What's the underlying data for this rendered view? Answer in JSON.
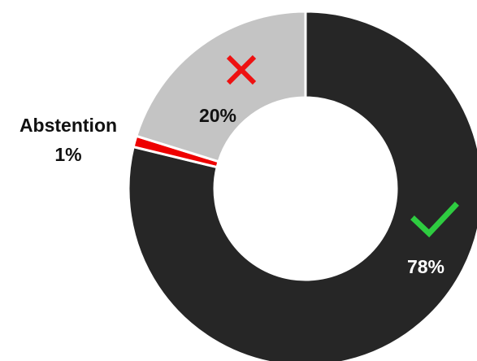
{
  "chart_data": {
    "type": "pie",
    "donut": true,
    "slices": [
      {
        "key": "yes",
        "value": 78,
        "label": "78%",
        "color": "#262626",
        "icon": "check-icon",
        "icon_color": "#2ecc40",
        "label_color": "#ffffff"
      },
      {
        "key": "abstention",
        "value": 1,
        "label": "1%",
        "name": "Abstention",
        "color": "#ee0000",
        "label_color": "#111111"
      },
      {
        "key": "no",
        "value": 20,
        "label": "20%",
        "color": "#c4c4c4",
        "icon": "cross-icon",
        "icon_color": "#ee1111",
        "label_color": "#111111"
      }
    ]
  }
}
